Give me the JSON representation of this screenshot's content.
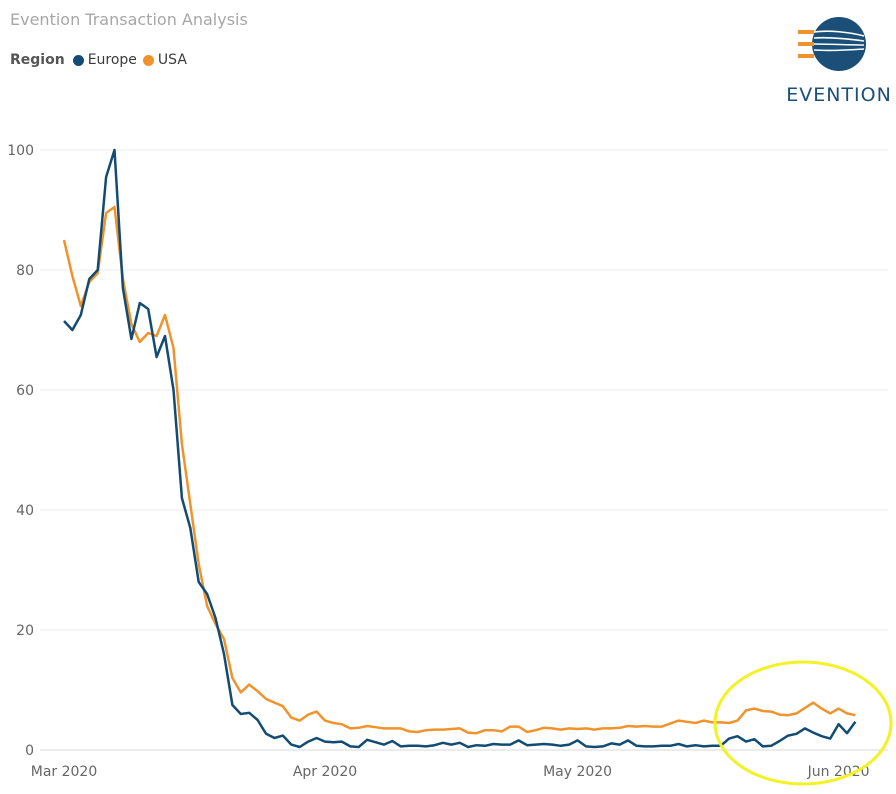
{
  "chart_data": {
    "type": "line",
    "title": "Evention Transaction Analysis",
    "legend_title": "Region",
    "legend_position": "top-left",
    "grid": true,
    "x_start": "2020-03-01",
    "x_end": "2020-06-02",
    "xticks": [
      {
        "date": "2020-03-01",
        "label": "Mar 2020"
      },
      {
        "date": "2020-04-01",
        "label": "Apr 2020"
      },
      {
        "date": "2020-05-01",
        "label": "May 2020"
      },
      {
        "date": "2020-06-01",
        "label": "Jun 2020"
      }
    ],
    "yticks": [
      0,
      20,
      40,
      60,
      80,
      100
    ],
    "ylim": [
      0,
      100
    ],
    "series": [
      {
        "name": "Europe",
        "color": "#134c73",
        "points": [
          [
            "2020-03-01",
            71.5
          ],
          [
            "2020-03-02",
            70
          ],
          [
            "2020-03-03",
            72.5
          ],
          [
            "2020-03-04",
            78.5
          ],
          [
            "2020-03-05",
            80
          ],
          [
            "2020-03-06",
            95.5
          ],
          [
            "2020-03-07",
            100
          ],
          [
            "2020-03-08",
            77
          ],
          [
            "2020-03-09",
            68.5
          ],
          [
            "2020-03-10",
            74.5
          ],
          [
            "2020-03-11",
            73.5
          ],
          [
            "2020-03-12",
            65.5
          ],
          [
            "2020-03-13",
            69
          ],
          [
            "2020-03-14",
            60
          ],
          [
            "2020-03-15",
            42
          ],
          [
            "2020-03-16",
            37
          ],
          [
            "2020-03-17",
            28
          ],
          [
            "2020-03-18",
            26
          ],
          [
            "2020-03-19",
            22
          ],
          [
            "2020-03-20",
            16
          ],
          [
            "2020-03-21",
            7.5
          ],
          [
            "2020-03-22",
            6
          ],
          [
            "2020-03-23",
            6.2
          ],
          [
            "2020-03-24",
            5
          ],
          [
            "2020-03-25",
            2.7
          ],
          [
            "2020-03-26",
            2
          ],
          [
            "2020-03-27",
            2.4
          ],
          [
            "2020-03-28",
            0.9
          ],
          [
            "2020-03-29",
            0.5
          ],
          [
            "2020-03-30",
            1.4
          ],
          [
            "2020-03-31",
            2
          ],
          [
            "2020-04-01",
            1.4
          ],
          [
            "2020-04-02",
            1.3
          ],
          [
            "2020-04-03",
            1.4
          ],
          [
            "2020-04-04",
            0.6
          ],
          [
            "2020-04-05",
            0.5
          ],
          [
            "2020-04-06",
            1.7
          ],
          [
            "2020-04-07",
            1.3
          ],
          [
            "2020-04-08",
            0.9
          ],
          [
            "2020-04-09",
            1.5
          ],
          [
            "2020-04-10",
            0.6
          ],
          [
            "2020-04-11",
            0.7
          ],
          [
            "2020-04-12",
            0.7
          ],
          [
            "2020-04-13",
            0.6
          ],
          [
            "2020-04-14",
            0.8
          ],
          [
            "2020-04-15",
            1.2
          ],
          [
            "2020-04-16",
            0.9
          ],
          [
            "2020-04-17",
            1.2
          ],
          [
            "2020-04-18",
            0.5
          ],
          [
            "2020-04-19",
            0.8
          ],
          [
            "2020-04-20",
            0.7
          ],
          [
            "2020-04-21",
            1
          ],
          [
            "2020-04-22",
            0.9
          ],
          [
            "2020-04-23",
            0.9
          ],
          [
            "2020-04-24",
            1.6
          ],
          [
            "2020-04-25",
            0.8
          ],
          [
            "2020-04-26",
            0.9
          ],
          [
            "2020-04-27",
            1
          ],
          [
            "2020-04-28",
            0.9
          ],
          [
            "2020-04-29",
            0.7
          ],
          [
            "2020-04-30",
            0.9
          ],
          [
            "2020-05-01",
            1.6
          ],
          [
            "2020-05-02",
            0.6
          ],
          [
            "2020-05-03",
            0.5
          ],
          [
            "2020-05-04",
            0.6
          ],
          [
            "2020-05-05",
            1.1
          ],
          [
            "2020-05-06",
            0.9
          ],
          [
            "2020-05-07",
            1.6
          ],
          [
            "2020-05-08",
            0.7
          ],
          [
            "2020-05-09",
            0.6
          ],
          [
            "2020-05-10",
            0.6
          ],
          [
            "2020-05-11",
            0.7
          ],
          [
            "2020-05-12",
            0.7
          ],
          [
            "2020-05-13",
            1
          ],
          [
            "2020-05-14",
            0.6
          ],
          [
            "2020-05-15",
            0.8
          ],
          [
            "2020-05-16",
            0.6
          ],
          [
            "2020-05-17",
            0.7
          ],
          [
            "2020-05-18",
            0.7
          ],
          [
            "2020-05-19",
            1.9
          ],
          [
            "2020-05-20",
            2.3
          ],
          [
            "2020-05-21",
            1.4
          ],
          [
            "2020-05-22",
            1.8
          ],
          [
            "2020-05-23",
            0.6
          ],
          [
            "2020-05-24",
            0.7
          ],
          [
            "2020-05-25",
            1.5
          ],
          [
            "2020-05-26",
            2.4
          ],
          [
            "2020-05-27",
            2.7
          ],
          [
            "2020-05-28",
            3.6
          ],
          [
            "2020-05-29",
            2.9
          ],
          [
            "2020-05-30",
            2.3
          ],
          [
            "2020-05-31",
            1.9
          ],
          [
            "2020-06-01",
            4.3
          ],
          [
            "2020-06-02",
            2.8
          ],
          [
            "2020-06-03",
            4.7
          ]
        ]
      },
      {
        "name": "USA",
        "color": "#f0932d",
        "points": [
          [
            "2020-03-01",
            85
          ],
          [
            "2020-03-02",
            79
          ],
          [
            "2020-03-03",
            74
          ],
          [
            "2020-03-04",
            78
          ],
          [
            "2020-03-05",
            79.5
          ],
          [
            "2020-03-06",
            89.5
          ],
          [
            "2020-03-07",
            90.5
          ],
          [
            "2020-03-08",
            78.5
          ],
          [
            "2020-03-09",
            71
          ],
          [
            "2020-03-10",
            68
          ],
          [
            "2020-03-11",
            69.5
          ],
          [
            "2020-03-12",
            69
          ],
          [
            "2020-03-13",
            72.5
          ],
          [
            "2020-03-14",
            67
          ],
          [
            "2020-03-15",
            51
          ],
          [
            "2020-03-16",
            41
          ],
          [
            "2020-03-17",
            31
          ],
          [
            "2020-03-18",
            24
          ],
          [
            "2020-03-19",
            21
          ],
          [
            "2020-03-20",
            18.5
          ],
          [
            "2020-03-21",
            12
          ],
          [
            "2020-03-22",
            9.6
          ],
          [
            "2020-03-23",
            10.9
          ],
          [
            "2020-03-24",
            9.8
          ],
          [
            "2020-03-25",
            8.5
          ],
          [
            "2020-03-26",
            7.9
          ],
          [
            "2020-03-27",
            7.3
          ],
          [
            "2020-03-28",
            5.4
          ],
          [
            "2020-03-29",
            4.9
          ],
          [
            "2020-03-30",
            5.9
          ],
          [
            "2020-03-31",
            6.4
          ],
          [
            "2020-04-01",
            4.9
          ],
          [
            "2020-04-02",
            4.5
          ],
          [
            "2020-04-03",
            4.3
          ],
          [
            "2020-04-04",
            3.6
          ],
          [
            "2020-04-05",
            3.7
          ],
          [
            "2020-04-06",
            4
          ],
          [
            "2020-04-07",
            3.8
          ],
          [
            "2020-04-08",
            3.6
          ],
          [
            "2020-04-09",
            3.6
          ],
          [
            "2020-04-10",
            3.6
          ],
          [
            "2020-04-11",
            3.1
          ],
          [
            "2020-04-12",
            3
          ],
          [
            "2020-04-13",
            3.3
          ],
          [
            "2020-04-14",
            3.4
          ],
          [
            "2020-04-15",
            3.4
          ],
          [
            "2020-04-16",
            3.5
          ],
          [
            "2020-04-17",
            3.6
          ],
          [
            "2020-04-18",
            2.9
          ],
          [
            "2020-04-19",
            2.8
          ],
          [
            "2020-04-20",
            3.3
          ],
          [
            "2020-04-21",
            3.3
          ],
          [
            "2020-04-22",
            3.1
          ],
          [
            "2020-04-23",
            3.9
          ],
          [
            "2020-04-24",
            3.9
          ],
          [
            "2020-04-25",
            3
          ],
          [
            "2020-04-26",
            3.3
          ],
          [
            "2020-04-27",
            3.7
          ],
          [
            "2020-04-28",
            3.6
          ],
          [
            "2020-04-29",
            3.4
          ],
          [
            "2020-04-30",
            3.6
          ],
          [
            "2020-05-01",
            3.5
          ],
          [
            "2020-05-02",
            3.6
          ],
          [
            "2020-05-03",
            3.4
          ],
          [
            "2020-05-04",
            3.6
          ],
          [
            "2020-05-05",
            3.6
          ],
          [
            "2020-05-06",
            3.7
          ],
          [
            "2020-05-07",
            4
          ],
          [
            "2020-05-08",
            3.9
          ],
          [
            "2020-05-09",
            4
          ],
          [
            "2020-05-10",
            3.9
          ],
          [
            "2020-05-11",
            3.9
          ],
          [
            "2020-05-12",
            4.4
          ],
          [
            "2020-05-13",
            4.9
          ],
          [
            "2020-05-14",
            4.7
          ],
          [
            "2020-05-15",
            4.5
          ],
          [
            "2020-05-16",
            4.9
          ],
          [
            "2020-05-17",
            4.6
          ],
          [
            "2020-05-18",
            4.6
          ],
          [
            "2020-05-19",
            4.5
          ],
          [
            "2020-05-20",
            4.9
          ],
          [
            "2020-05-21",
            6.6
          ],
          [
            "2020-05-22",
            6.9
          ],
          [
            "2020-05-23",
            6.5
          ],
          [
            "2020-05-24",
            6.4
          ],
          [
            "2020-05-25",
            5.9
          ],
          [
            "2020-05-26",
            5.8
          ],
          [
            "2020-05-27",
            6.1
          ],
          [
            "2020-05-28",
            7
          ],
          [
            "2020-05-29",
            7.9
          ],
          [
            "2020-05-30",
            6.9
          ],
          [
            "2020-05-31",
            6.1
          ],
          [
            "2020-06-01",
            6.9
          ],
          [
            "2020-06-02",
            6.1
          ],
          [
            "2020-06-03",
            5.8
          ]
        ]
      }
    ],
    "annotation": {
      "shape": "ellipse",
      "color": "#f2f224",
      "region": "2020-05-18 to 2020-06-03"
    }
  },
  "logo": {
    "text": "EVENTION",
    "primary_color": "#1b4f78",
    "accent_color": "#f0932d"
  }
}
